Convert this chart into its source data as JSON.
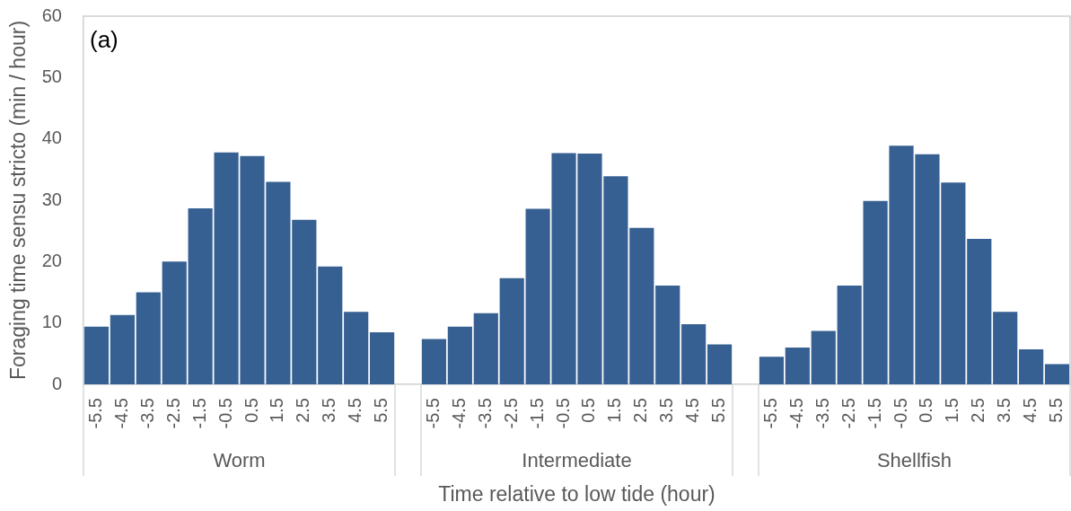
{
  "chart_data": {
    "type": "bar",
    "title": "(a)",
    "xlabel": "Time relative to low tide (hour)",
    "ylabel": "Foraging time sensu stricto (min / hour)",
    "categories": [
      "-5.5",
      "-4.5",
      "-3.5",
      "-2.5",
      "-1.5",
      "-0.5",
      "0.5",
      "1.5",
      "2.5",
      "3.5",
      "4.5",
      "5.5",
      null,
      "-5.5",
      "-4.5",
      "-3.5",
      "-2.5",
      "-1.5",
      "-0.5",
      "0.5",
      "1.5",
      "2.5",
      "3.5",
      "4.5",
      "5.5",
      null,
      "-5.5",
      "-4.5",
      "-3.5",
      "-2.5",
      "-1.5",
      "-0.5",
      "0.5",
      "1.5",
      "2.5",
      "3.5",
      "4.5",
      "5.5"
    ],
    "values": [
      9.4,
      11.3,
      15.0,
      20.0,
      28.7,
      37.8,
      37.2,
      33.0,
      26.8,
      19.2,
      11.8,
      8.5,
      null,
      7.4,
      9.4,
      11.6,
      17.3,
      28.6,
      37.7,
      37.6,
      33.9,
      25.5,
      16.1,
      9.8,
      6.5,
      null,
      4.5,
      6.0,
      8.7,
      16.1,
      29.9,
      38.9,
      37.5,
      32.9,
      23.7,
      11.8,
      5.7,
      3.3
    ],
    "color": "#376092",
    "ylim": [
      0,
      60
    ],
    "yticks": [
      0,
      10,
      20,
      30,
      40,
      50,
      60
    ],
    "annotations": [
      "Worm",
      "Intermediate",
      "Shellfish"
    ]
  }
}
